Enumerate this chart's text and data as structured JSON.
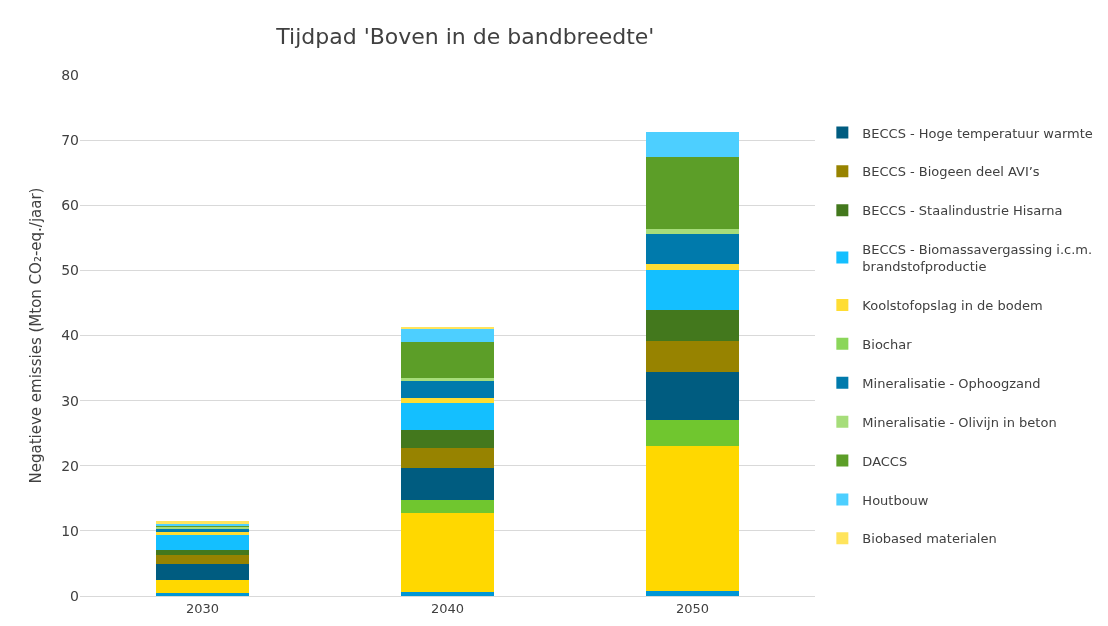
{
  "chart_data": {
    "type": "bar",
    "title": "Tijdpad 'Boven in de bandbreedte'",
    "ylabel": "Negatieve emissies (Mton CO₂-eq./jaar)",
    "categories": [
      "2030",
      "2040",
      "2050"
    ],
    "stacked": true,
    "ylim": [
      0,
      80
    ],
    "yticks": [
      0,
      10,
      20,
      30,
      40,
      50,
      60,
      70,
      80
    ],
    "grid": "y",
    "legend": "right",
    "series": [
      {
        "color": "#0096d6",
        "values": [
          0.4,
          0.6,
          0.7
        ]
      },
      {
        "color": "#ffd800",
        "values": [
          2.0,
          12.1,
          22.3
        ]
      },
      {
        "color": "#70c62f",
        "values": [
          0,
          2.0,
          4.0
        ]
      },
      {
        "name": "BECCS - Hoge temperatuur warmte",
        "color": "#005c80",
        "values": [
          2.5,
          4.9,
          7.4
        ]
      },
      {
        "name": "BECCS - Biogeen deel AVI’s",
        "color": "#978300",
        "values": [
          1.4,
          3.1,
          4.8
        ]
      },
      {
        "name": "BECCS - Staalindustrie Hisarna",
        "color": "#43781d",
        "values": [
          0.7,
          2.8,
          4.7
        ]
      },
      {
        "name": "BECCS - Biomassavergassing i.c.m. brandstofproductie",
        "color": "#14bfff",
        "values": [
          2.3,
          4.1,
          6.1
        ]
      },
      {
        "name": "Koolstofopslag in de bodem",
        "color": "#ffdd33",
        "values": [
          0.6,
          0.8,
          1.0
        ]
      },
      {
        "name": "Biochar",
        "color": "#8bd65a",
        "values": [
          null,
          null,
          null
        ]
      },
      {
        "name": "Mineralisatie - Ophoogzand",
        "color": "#007aac",
        "values": [
          0.4,
          2.6,
          4.6
        ]
      },
      {
        "name": "Mineralisatie - Olivijn in beton",
        "color": "#a6dd7a",
        "values": [
          0.3,
          0.4,
          0.8
        ]
      },
      {
        "name": "DACCS",
        "color": "#5c9e28",
        "values": [
          0.1,
          5.6,
          11.0
        ]
      },
      {
        "name": "Houtbouw",
        "color": "#4dcfff",
        "values": [
          0.4,
          2.1,
          3.9
        ]
      },
      {
        "name": "Biobased materialen",
        "color": "#ffe45c",
        "values": [
          0.4,
          0.2,
          null
        ]
      }
    ]
  }
}
